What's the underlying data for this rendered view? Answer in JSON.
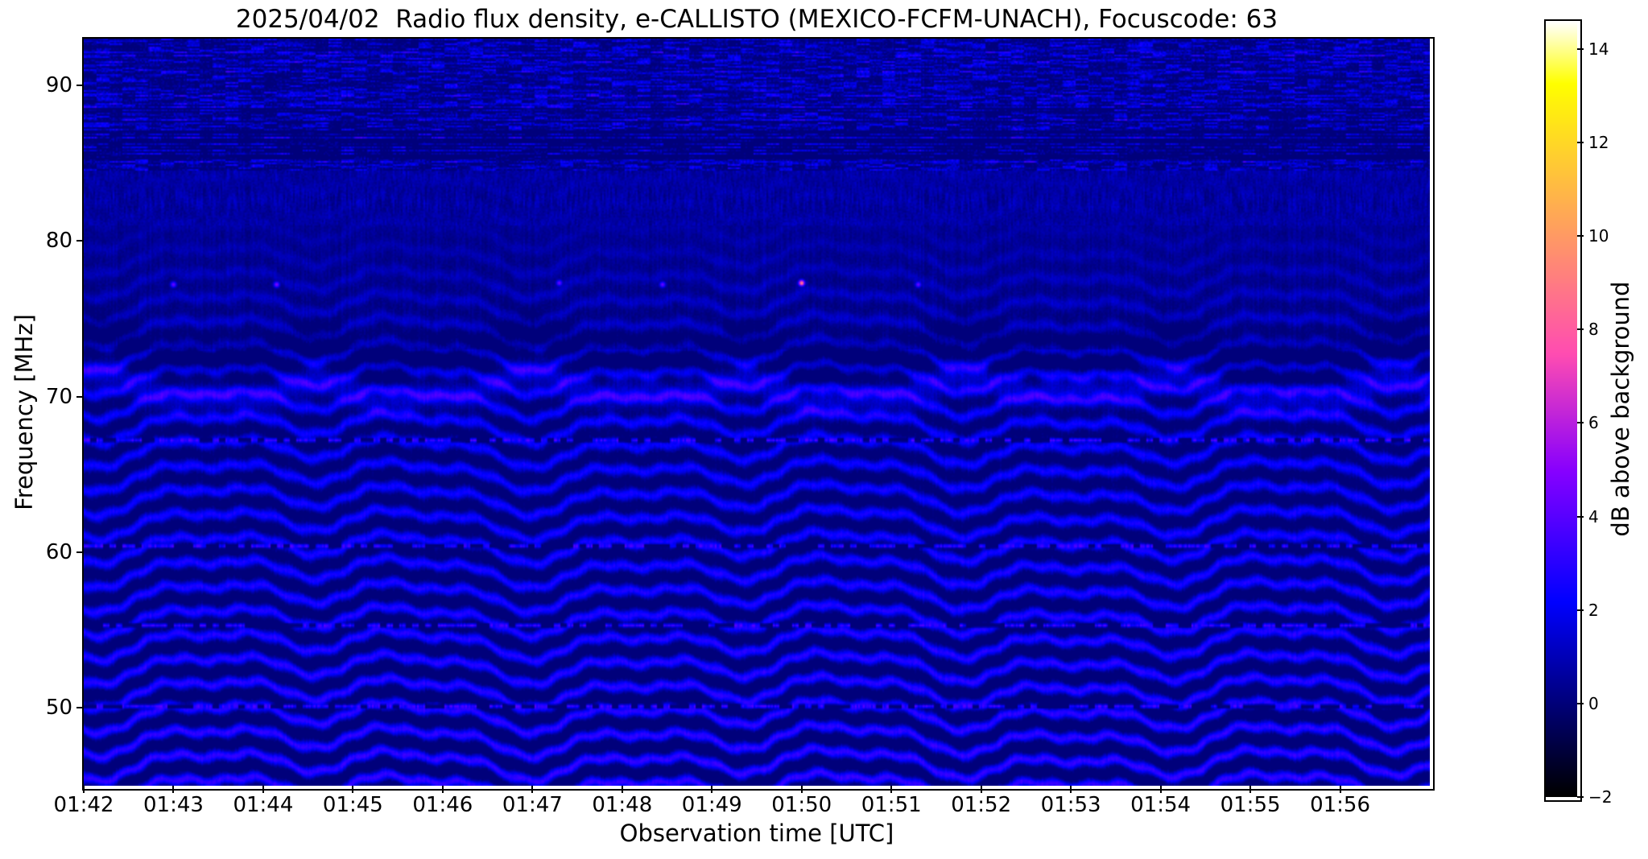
{
  "figure": {
    "background": "#ffffff",
    "text_color": "#000000"
  },
  "chart_data": {
    "type": "heatmap",
    "title": "2025/04/02  Radio flux density, e-CALLISTO (MEXICO-FCFM-UNACH), Focuscode: 63",
    "xlabel": "Observation time [UTC]",
    "ylabel": "Frequency [MHz]",
    "x_ticks": [
      "01:42",
      "01:43",
      "01:44",
      "01:45",
      "01:46",
      "01:47",
      "01:48",
      "01:49",
      "01:50",
      "01:51",
      "01:52",
      "01:53",
      "01:54",
      "01:55",
      "01:56"
    ],
    "x_range_minutes": [
      0,
      15
    ],
    "y_ticks": [
      90,
      80,
      70,
      60,
      50
    ],
    "y_range_mhz": [
      45,
      93
    ],
    "grid": false,
    "colorbar": {
      "label": "dB above background",
      "ticks": [
        14,
        12,
        10,
        8,
        6,
        4,
        2,
        0,
        -2
      ],
      "tick_labels": [
        "14",
        "12",
        "10",
        "8",
        "6",
        "4",
        "2",
        "0",
        "−2"
      ],
      "range": [
        -2,
        14.6
      ],
      "colormap": "gnuplot2"
    },
    "pattern": {
      "description": "Solar radio spectrogram: dark navy background with wavy quasi-horizontal blue interference fringes below ~81 MHz (strongest thick band near 70.4 MHz, dense high-contrast fringes 45-70 MHz), broadband streaky RFI noise band 84.5-93 MHz with black lanes near 85-89 MHz, dashed/dotted horizontal RFI lines, and faint point sources near 77 MHz (brightest pink dot at 01:50).",
      "fringe_spacing_mhz": 1.55,
      "fringe_region_mhz": [
        45,
        81
      ],
      "strong_band_mhz": 70.4,
      "dark_lane_mhz": 72.8,
      "noise_band_mhz": [
        84.5,
        93
      ],
      "rfi_lines_mhz": [
        67.2,
        60.4,
        55.3,
        50.1
      ],
      "wave_components": [
        {
          "period_min": 2.4,
          "amp_mhz": 0.6,
          "phase": 1.2
        },
        {
          "period_min": 1.2,
          "amp_mhz": 0.32,
          "phase": 0.5
        },
        {
          "period_min": 5.5,
          "amp_mhz": 0.3,
          "phase": 1.8
        }
      ],
      "point_sources": [
        {
          "t_min": 1.0,
          "f_mhz": 77.2,
          "db": 4.5
        },
        {
          "t_min": 2.15,
          "f_mhz": 77.2,
          "db": 5.0
        },
        {
          "t_min": 5.3,
          "f_mhz": 77.3,
          "db": 4.5
        },
        {
          "t_min": 6.45,
          "f_mhz": 77.2,
          "db": 4.5
        },
        {
          "t_min": 8.0,
          "f_mhz": 77.3,
          "db": 9.5
        },
        {
          "t_min": 9.3,
          "f_mhz": 77.2,
          "db": 4.5
        }
      ]
    }
  }
}
